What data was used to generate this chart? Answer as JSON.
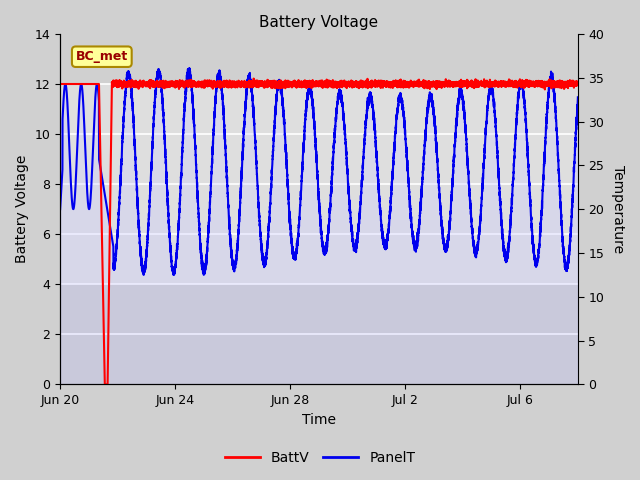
{
  "title": "Battery Voltage",
  "xlabel": "Time",
  "ylabel_left": "Battery Voltage",
  "ylabel_right": "Temperature",
  "annotation_text": "BC_met",
  "xlim_days": [
    0,
    18
  ],
  "ylim_left": [
    0,
    14
  ],
  "ylim_right": [
    0,
    40
  ],
  "yticks_left": [
    0,
    2,
    4,
    6,
    8,
    10,
    12,
    14
  ],
  "yticks_right": [
    0,
    5,
    10,
    15,
    20,
    25,
    30,
    35,
    40
  ],
  "xtick_labels": [
    "Jun 20",
    "Jun 24",
    "Jun 28",
    "Jul 2",
    "Jul 6"
  ],
  "xtick_positions": [
    0,
    4,
    8,
    12,
    16
  ],
  "batt_color": "#FF0000",
  "panel_color": "#0000EE",
  "panel_fill_color": "#CCCCFF",
  "grid_color": "#FFFFFF",
  "bg_outer_color": "#D0D0D0",
  "bg_inner_top_color": "#E8E8E8",
  "bg_inner_bottom_color": "#C8C8C8",
  "title_fontsize": 11,
  "axis_label_fontsize": 10,
  "tick_fontsize": 9
}
